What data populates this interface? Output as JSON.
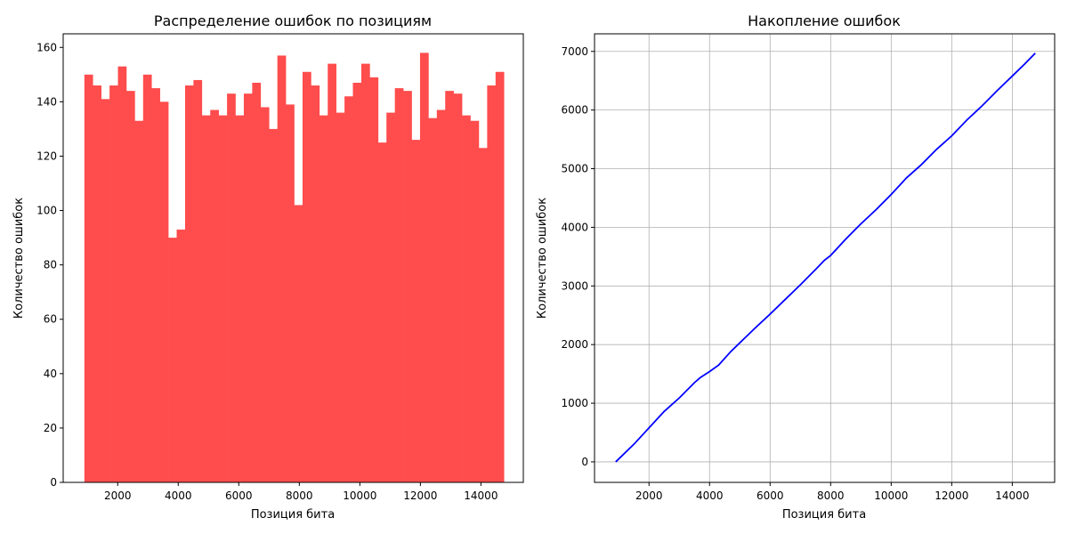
{
  "chart_data": [
    {
      "type": "bar",
      "title": "Распределение ошибок по позициям",
      "xlabel": "Позиция бита",
      "ylabel": "Количество ошибок",
      "color": "#ff4c4c",
      "grid": false,
      "xlim": [
        200,
        15400
      ],
      "ylim": [
        0,
        165
      ],
      "xticks": [
        2000,
        4000,
        6000,
        8000,
        10000,
        12000,
        14000
      ],
      "yticks": [
        0,
        20,
        40,
        60,
        80,
        100,
        120,
        140,
        160
      ],
      "bin_start": 900,
      "bin_end": 14760,
      "values": [
        150,
        146,
        141,
        146,
        153,
        144,
        133,
        150,
        145,
        140,
        90,
        93,
        146,
        148,
        135,
        137,
        135,
        143,
        135,
        143,
        147,
        138,
        130,
        157,
        139,
        102,
        151,
        146,
        135,
        154,
        136,
        142,
        147,
        154,
        149,
        125,
        136,
        145,
        144,
        126,
        158,
        134,
        137,
        144,
        143,
        135,
        133,
        123,
        146,
        151
      ]
    },
    {
      "type": "line",
      "title": "Накопление ошибок",
      "xlabel": "Позиция бита",
      "ylabel": "Количество ошибок",
      "color": "#0000ff",
      "grid": true,
      "xlim": [
        200,
        15400
      ],
      "ylim": [
        -350,
        7300
      ],
      "xticks": [
        2000,
        4000,
        6000,
        8000,
        10000,
        12000,
        14000
      ],
      "yticks": [
        0,
        1000,
        2000,
        3000,
        4000,
        5000,
        6000,
        7000
      ],
      "x": [
        900,
        1500,
        2000,
        2500,
        3000,
        3500,
        3700,
        4000,
        4300,
        4700,
        5000,
        5500,
        6000,
        6500,
        7000,
        7500,
        7800,
        8000,
        8500,
        9000,
        9500,
        10000,
        10500,
        11000,
        11500,
        12000,
        12500,
        13000,
        13500,
        14000,
        14400,
        14760
      ],
      "y": [
        0,
        300,
        580,
        860,
        1090,
        1350,
        1440,
        1540,
        1650,
        1880,
        2030,
        2280,
        2520,
        2770,
        3020,
        3280,
        3440,
        3520,
        3800,
        4060,
        4300,
        4560,
        4840,
        5070,
        5330,
        5560,
        5830,
        6070,
        6330,
        6580,
        6780,
        6970
      ]
    }
  ]
}
